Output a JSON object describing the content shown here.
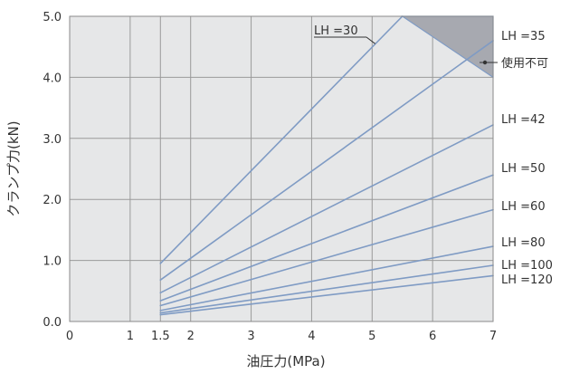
{
  "chart_data": {
    "type": "line",
    "xlabel": "油圧力(MPa)",
    "ylabel": "クランプ力(kN)",
    "xlim": [
      0,
      7
    ],
    "ylim": [
      0,
      5.0
    ],
    "x_ticks": [
      {
        "v": 0,
        "label": "0"
      },
      {
        "v": 1,
        "label": "1"
      },
      {
        "v": 1.5,
        "label": "1.5"
      },
      {
        "v": 2,
        "label": "2"
      },
      {
        "v": 3,
        "label": "3"
      },
      {
        "v": 4,
        "label": "4"
      },
      {
        "v": 5,
        "label": "5"
      },
      {
        "v": 6,
        "label": "6"
      },
      {
        "v": 7,
        "label": "7"
      }
    ],
    "y_ticks": [
      {
        "v": 0,
        "label": "0.0"
      },
      {
        "v": 1,
        "label": "1.0"
      },
      {
        "v": 2,
        "label": "2.0"
      },
      {
        "v": 3,
        "label": "3.0"
      },
      {
        "v": 4,
        "label": "4.0"
      },
      {
        "v": 5,
        "label": "5.0"
      }
    ],
    "grid": true,
    "series": [
      {
        "name": "LH =30",
        "points": [
          [
            1.5,
            0.95
          ],
          [
            5.5,
            5.0
          ]
        ]
      },
      {
        "name": "LH =35",
        "points": [
          [
            1.5,
            0.68
          ],
          [
            7,
            4.6
          ]
        ]
      },
      {
        "name": "LH =42",
        "points": [
          [
            1.5,
            0.47
          ],
          [
            7,
            3.22
          ]
        ]
      },
      {
        "name": "LH =50",
        "points": [
          [
            1.5,
            0.34
          ],
          [
            7,
            2.4
          ]
        ]
      },
      {
        "name": "LH =60",
        "points": [
          [
            1.5,
            0.26
          ],
          [
            7,
            1.83
          ]
        ]
      },
      {
        "name": "LH =80",
        "points": [
          [
            1.5,
            0.18
          ],
          [
            7,
            1.23
          ]
        ]
      },
      {
        "name": "LH =100",
        "points": [
          [
            1.5,
            0.14
          ],
          [
            7,
            0.92
          ]
        ]
      },
      {
        "name": "LH =120",
        "points": [
          [
            1.5,
            0.11
          ],
          [
            7,
            0.75
          ]
        ]
      }
    ],
    "forbidden_region": {
      "label": "使用不可",
      "points": [
        [
          5.5,
          5.0
        ],
        [
          7,
          5.0
        ],
        [
          7,
          4.0
        ]
      ]
    },
    "colors": {
      "plot_bg": "#e6e7e8",
      "grid": "#9a9a9a",
      "line": "#7f9bc4",
      "forbidden_fill": "#a7a9b0",
      "text": "#333333"
    }
  }
}
